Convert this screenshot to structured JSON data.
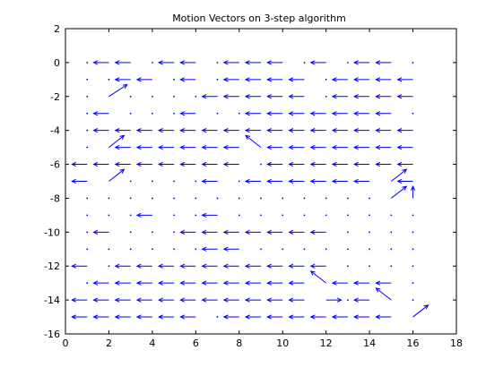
{
  "chart_data": {
    "type": "quiver",
    "title": "Motion Vectors on 3-step algorithm",
    "xlabel": "",
    "ylabel": "",
    "xlim": [
      0,
      18
    ],
    "ylim": [
      -16,
      2
    ],
    "xticks": [
      0,
      2,
      4,
      6,
      8,
      10,
      12,
      14,
      16,
      18
    ],
    "yticks": [
      2,
      0,
      -2,
      -4,
      -6,
      -8,
      -10,
      -12,
      -14,
      -16
    ],
    "grid": false,
    "legend": "none",
    "arrow_color": "#0000ff",
    "arrow_scale": 0.7,
    "grid_x": [
      1,
      2,
      3,
      4,
      5,
      6,
      7,
      8,
      9,
      10,
      11,
      12,
      13,
      14,
      15,
      16
    ],
    "grid_y": [
      0,
      -1,
      -2,
      -3,
      -4,
      -5,
      -6,
      -7,
      -8,
      -9,
      -10,
      -11,
      -12,
      -13,
      -14,
      -15
    ],
    "u": [
      [
        0,
        -1,
        -1,
        0,
        -1,
        -1,
        0,
        -1,
        -1,
        -1,
        0,
        -1,
        0,
        -1,
        -1,
        0
      ],
      [
        0,
        0,
        -1,
        -1,
        0,
        -1,
        0,
        -1,
        -1,
        -1,
        -1,
        0,
        -1,
        -1,
        -1,
        -1
      ],
      [
        0,
        1.2,
        0,
        0,
        0,
        0,
        -1,
        -1,
        -1,
        -1,
        -1,
        0,
        -1,
        -1,
        -1,
        -1
      ],
      [
        0,
        -1,
        0,
        0,
        0,
        -1,
        0,
        0,
        -1,
        -1,
        -1,
        -1,
        -1,
        -1,
        -1,
        0
      ],
      [
        0,
        -1,
        -1,
        -1,
        -1,
        -1,
        -1,
        -1,
        -1,
        -1,
        -1,
        -1,
        -1,
        -1,
        -1,
        -1
      ],
      [
        0,
        1.0,
        -1,
        -1,
        -1,
        -1,
        -1,
        -1,
        -1,
        -1,
        -1,
        -1,
        -1,
        -1,
        -1,
        -1
      ],
      [
        -1,
        -1,
        -1,
        -1,
        -1,
        -1,
        -1,
        -1,
        0,
        -1,
        -1,
        -1,
        -1,
        -1,
        -1,
        -1
      ],
      [
        -1,
        1.0,
        0,
        0,
        0,
        0,
        -1,
        0,
        -1,
        -1,
        -1,
        -1,
        -1,
        -1,
        1.0,
        -1
      ],
      [
        0,
        0,
        0,
        0,
        0,
        0,
        0,
        0,
        0,
        0,
        0,
        0,
        0,
        0,
        1.0,
        0
      ],
      [
        0,
        0,
        0,
        -1,
        0,
        0,
        -1,
        0,
        0,
        0,
        0,
        0,
        0,
        0,
        0,
        0
      ],
      [
        0,
        -1,
        0,
        0,
        0,
        -1,
        -1,
        -1,
        -1,
        -1,
        -1,
        -1,
        0,
        0,
        0,
        0
      ],
      [
        0,
        0,
        0,
        0,
        0,
        0,
        -1,
        -1,
        0,
        0,
        0,
        0,
        0,
        0,
        0,
        0
      ],
      [
        -1,
        0,
        -1,
        -1,
        -1,
        -1,
        -1,
        -1,
        -1,
        -1,
        -1,
        -1,
        0,
        0,
        0,
        0
      ],
      [
        0,
        -1,
        -1,
        -1,
        -1,
        -1,
        -1,
        -1,
        -1,
        -1,
        -1,
        -1,
        -1,
        -1,
        -1,
        0
      ],
      [
        -1,
        -1,
        -1,
        -1,
        -1,
        -1,
        -1,
        -1,
        -1,
        -1,
        -1,
        1.0,
        0,
        -1,
        -1,
        0
      ],
      [
        -1,
        -1,
        -1,
        -1,
        -1,
        -1,
        0,
        -1,
        -1,
        -1,
        -1,
        -1,
        -1,
        -1,
        -1,
        1.0
      ]
    ],
    "v": [
      [
        0,
        0,
        0,
        0,
        0,
        0,
        0,
        0,
        0,
        0,
        0,
        0,
        0,
        0,
        0,
        0
      ],
      [
        0,
        0,
        0,
        0,
        0,
        0,
        0,
        0,
        0,
        0,
        0,
        0,
        0,
        0,
        0,
        0
      ],
      [
        0,
        1.0,
        0,
        0,
        0,
        0,
        0,
        0,
        0,
        0,
        0,
        0,
        0,
        0,
        0,
        0
      ],
      [
        0,
        0,
        0,
        0,
        0,
        0,
        0,
        0,
        0,
        0,
        0,
        0,
        0,
        0,
        0,
        0
      ],
      [
        0,
        0,
        0,
        0,
        0,
        0,
        0,
        0,
        0,
        0,
        0,
        0,
        0,
        0,
        0,
        0
      ],
      [
        0,
        1.0,
        0,
        0,
        0,
        0,
        0,
        0,
        1.0,
        0,
        0,
        0,
        0,
        0,
        0,
        0
      ],
      [
        0,
        0,
        0,
        0,
        0,
        0,
        0,
        0,
        0,
        0,
        0,
        0,
        0,
        0,
        0,
        0
      ],
      [
        0,
        1.0,
        0,
        0,
        0,
        0,
        0,
        0,
        0,
        0,
        0,
        0,
        0,
        0,
        1.0,
        0
      ],
      [
        0,
        0,
        0,
        0,
        0,
        0,
        0,
        0,
        0,
        0,
        0,
        0,
        0,
        0,
        1.0,
        1.0
      ],
      [
        0,
        0,
        0,
        0,
        0,
        0,
        0,
        0,
        0,
        0,
        0,
        0,
        0,
        0,
        0,
        0
      ],
      [
        0,
        0,
        0,
        0,
        0,
        0,
        0,
        0,
        0,
        0,
        0,
        0,
        0,
        0,
        0,
        0
      ],
      [
        0,
        0,
        0,
        0,
        0,
        0,
        0,
        0,
        0,
        0,
        0,
        0,
        0,
        0,
        0,
        0
      ],
      [
        0,
        0,
        0,
        0,
        0,
        0,
        0,
        0,
        0,
        0,
        0,
        0,
        0,
        0,
        0,
        0
      ],
      [
        0,
        0,
        0,
        0,
        0,
        0,
        0,
        0,
        0,
        0,
        0,
        1.0,
        0,
        0,
        0,
        0
      ],
      [
        0,
        0,
        0,
        0,
        0,
        0,
        0,
        0,
        0,
        0,
        0,
        0,
        0,
        0,
        1.0,
        0
      ],
      [
        0,
        0,
        0,
        0,
        0,
        0,
        0,
        0,
        0,
        0,
        0,
        0,
        0,
        0,
        0,
        1.0
      ]
    ]
  }
}
